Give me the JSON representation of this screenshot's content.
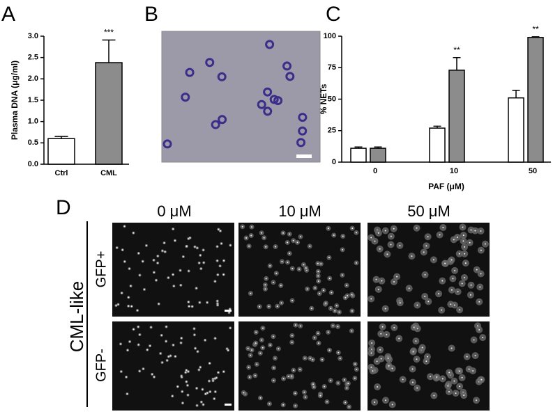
{
  "panel_labels": [
    "A",
    "B",
    "C",
    "D"
  ],
  "chart_data": [
    {
      "type": "bar",
      "ylabel": "Plasma DNA (μg/ml)",
      "categories": [
        "Ctrl",
        "CML"
      ],
      "values": [
        0.6,
        2.38
      ],
      "errors": [
        0.05,
        0.53
      ],
      "colors": [
        "#ffffff",
        "#8c8c8c"
      ],
      "ylim": [
        0,
        3
      ],
      "yticks": [
        {
          "value": 0,
          "label": "0.0"
        },
        {
          "value": 0.5,
          "label": "0.5"
        },
        {
          "value": 1,
          "label": "1.0"
        },
        {
          "value": 1.5,
          "label": "1.5"
        },
        {
          "value": 2,
          "label": "2.0"
        },
        {
          "value": 2.5,
          "label": "2.5"
        },
        {
          "value": 3,
          "label": "3.0"
        }
      ],
      "annotations": [
        {
          "text": "***",
          "category": 1
        }
      ]
    },
    {
      "type": "grouped-bar",
      "ylabel": "% NETs",
      "xlabel": "PAF (μM)",
      "categories": [
        "0",
        "10",
        "50"
      ],
      "series": [
        {
          "color": "#ffffff",
          "values": [
            11,
            27,
            51
          ],
          "errors": [
            1,
            1.5,
            6
          ]
        },
        {
          "color": "#8c8c8c",
          "values": [
            11,
            73,
            99
          ],
          "errors": [
            1,
            10,
            0.5
          ]
        }
      ],
      "ylim": [
        0,
        100
      ],
      "yticks": [
        0,
        25,
        50,
        75,
        100
      ],
      "annotations": [
        {
          "text": "**",
          "category": 1,
          "series": 1
        },
        {
          "text": "**",
          "category": 2,
          "series": 1
        }
      ]
    }
  ],
  "micrograph_grid": {
    "group_label": "CML-like",
    "columns": [
      "0 μM",
      "10 μM",
      "50 μM"
    ],
    "rows": [
      "GFP+",
      "GFP-"
    ]
  }
}
